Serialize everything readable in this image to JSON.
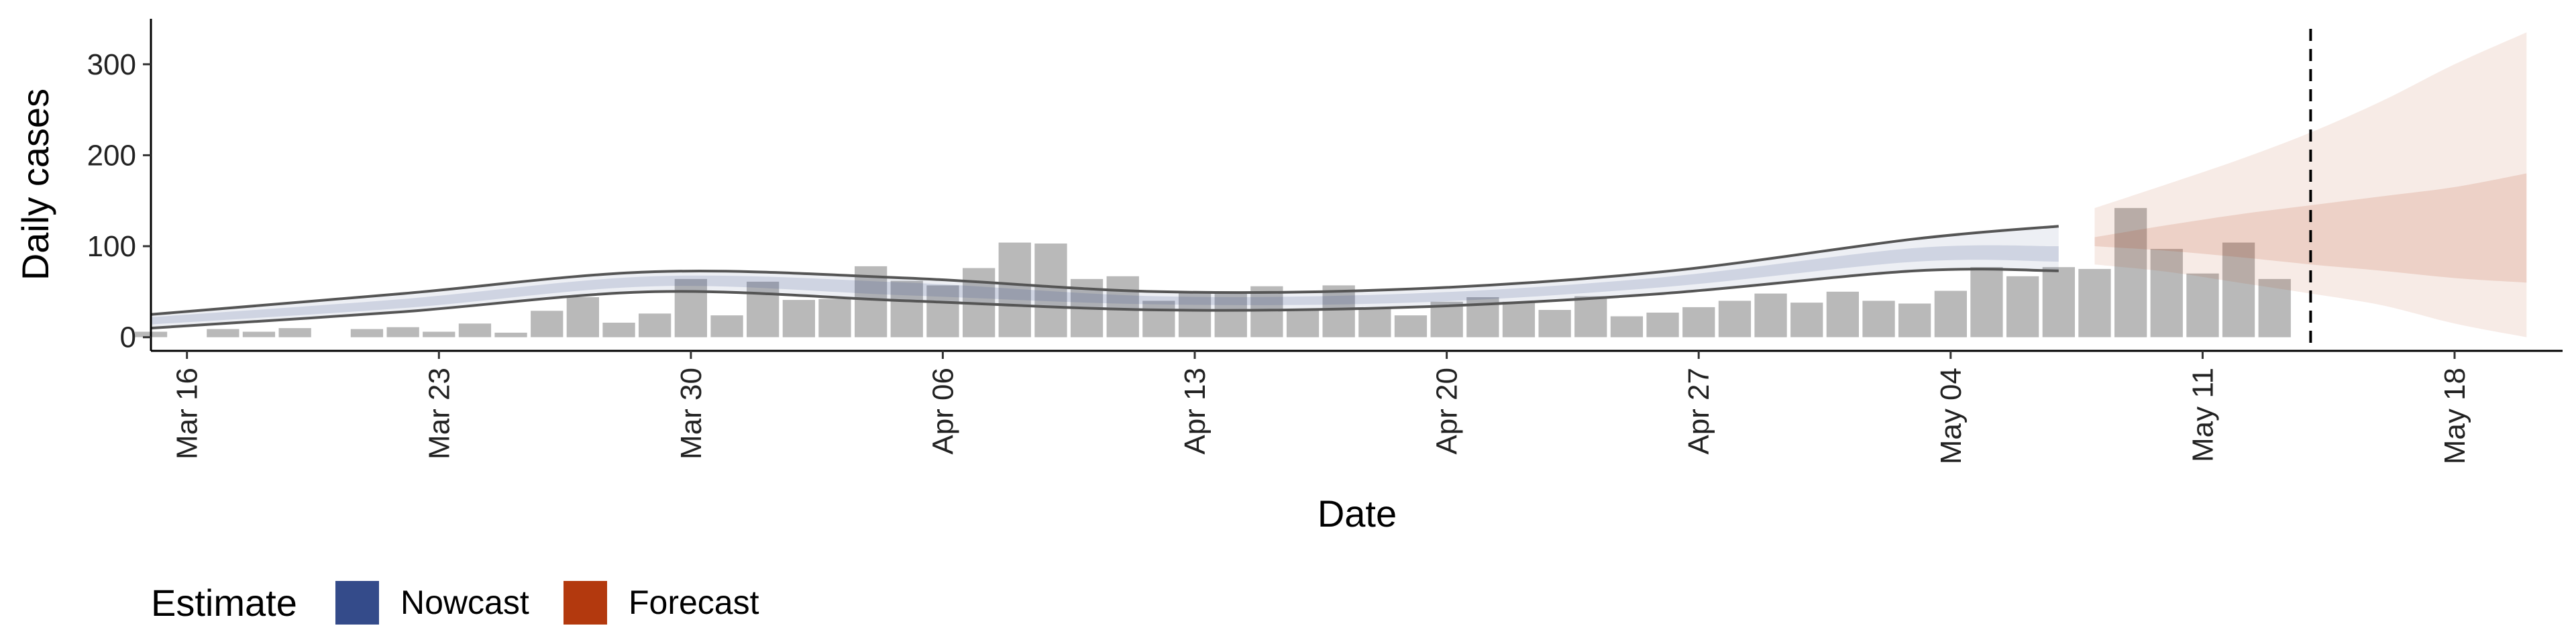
{
  "chart_data": {
    "type": "bar",
    "title": "",
    "xlabel": "Date",
    "ylabel": "Daily cases",
    "x_start": "2020-03-15",
    "x_end": "2020-05-21",
    "ylim": [
      -15,
      350
    ],
    "yticks": [
      0,
      100,
      200,
      300
    ],
    "xticks": [
      {
        "date": "2020-03-16",
        "label": "Mar 16"
      },
      {
        "date": "2020-03-23",
        "label": "Mar 23"
      },
      {
        "date": "2020-03-30",
        "label": "Mar 30"
      },
      {
        "date": "2020-04-06",
        "label": "Apr 06"
      },
      {
        "date": "2020-04-13",
        "label": "Apr 13"
      },
      {
        "date": "2020-04-20",
        "label": "Apr 20"
      },
      {
        "date": "2020-04-27",
        "label": "Apr 27"
      },
      {
        "date": "2020-05-04",
        "label": "May 04"
      },
      {
        "date": "2020-05-11",
        "label": "May 11"
      },
      {
        "date": "2020-05-18",
        "label": "May 18"
      }
    ],
    "grid": false,
    "observed": {
      "start_date": "2020-03-15",
      "values": [
        6,
        0,
        9,
        6,
        10,
        0,
        9,
        11,
        6,
        15,
        5,
        29,
        44,
        16,
        26,
        64,
        24,
        61,
        41,
        42,
        78,
        62,
        57,
        76,
        104,
        103,
        64,
        67,
        40,
        50,
        49,
        56,
        30,
        57,
        31,
        24,
        39,
        44,
        39,
        30,
        45,
        23,
        27,
        33,
        40,
        48,
        38,
        50,
        40,
        37,
        51,
        77,
        67,
        77,
        75,
        142,
        97,
        70,
        104,
        64
      ]
    },
    "nowcast_dates": [
      "2020-03-15",
      "2020-03-22",
      "2020-03-29",
      "2020-04-05",
      "2020-04-12",
      "2020-04-19",
      "2020-04-26",
      "2020-05-03",
      "2020-05-07"
    ],
    "nowcast_outer_upper": [
      25,
      48,
      72,
      65,
      50,
      53,
      72,
      108,
      122
    ],
    "nowcast_outer_lower": [
      10,
      28,
      50,
      40,
      30,
      33,
      48,
      73,
      73
    ],
    "nowcast_inner_upper": [
      22,
      42,
      67,
      60,
      45,
      48,
      66,
      98,
      100
    ],
    "nowcast_inner_lower": [
      14,
      32,
      56,
      46,
      36,
      38,
      55,
      83,
      83
    ],
    "forecast_dates": [
      "2020-05-08",
      "2020-05-10",
      "2020-05-12",
      "2020-05-14",
      "2020-05-16",
      "2020-05-18",
      "2020-05-20"
    ],
    "forecast_outer_upper": [
      142,
      168,
      195,
      225,
      260,
      300,
      335
    ],
    "forecast_outer_lower": [
      80,
      72,
      60,
      48,
      35,
      15,
      0
    ],
    "forecast_inner_upper": [
      110,
      123,
      135,
      145,
      155,
      165,
      180
    ],
    "forecast_inner_lower": [
      100,
      95,
      88,
      80,
      73,
      65,
      60
    ],
    "vline_date": "2020-05-14",
    "legend": {
      "title": "Estimate",
      "position": "bottom-left",
      "items": [
        {
          "label": "Nowcast",
          "color": "#344b8a"
        },
        {
          "label": "Forecast",
          "color": "#b3390e"
        }
      ]
    },
    "colors": {
      "bars": "#b9b9b9",
      "nowcast": "#344b8a",
      "forecast": "#b3390e",
      "outline": "#555555"
    }
  }
}
